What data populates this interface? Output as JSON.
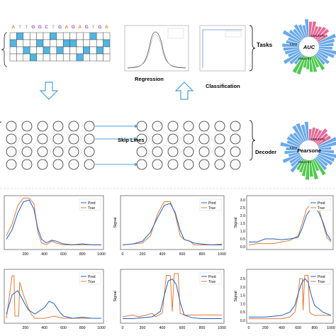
{
  "colors": {
    "seq_A": "#e6832a",
    "seq_T": "#b4b4b4",
    "seq_G": "#9c4bd0",
    "seq_C": "#c54fb0",
    "cell_fill": "#4fb6e3",
    "arrow_blue": "#4aa3d8",
    "pred": "#1f5fbf",
    "true": "#e07b39",
    "radial_blue": "#5aa0e6",
    "radial_pink": "#e25a8a",
    "radial_green": "#3ec43e"
  },
  "sequence": {
    "bases": [
      "A",
      "T",
      "T",
      "G",
      "G",
      "C",
      "T",
      "G",
      "A",
      "G",
      "A",
      "G",
      "T",
      "G",
      "A"
    ],
    "grid": [
      [
        0,
        1,
        0,
        0,
        0,
        0,
        1,
        0,
        0,
        0,
        0,
        0,
        1,
        0,
        0
      ],
      [
        1,
        0,
        0,
        0,
        1,
        0,
        0,
        0,
        1,
        1,
        0,
        0,
        0,
        0,
        1
      ],
      [
        0,
        0,
        1,
        0,
        0,
        1,
        0,
        1,
        0,
        0,
        0,
        1,
        0,
        1,
        0
      ],
      [
        0,
        0,
        0,
        1,
        0,
        0,
        0,
        0,
        0,
        0,
        1,
        0,
        0,
        0,
        0
      ]
    ]
  },
  "top_panels": {
    "regression_label": "Regression",
    "classification_label": "Classification",
    "tasks_label": "Tasks",
    "decoder_label": "Decoder",
    "skip_lines_label": "Skip Lines"
  },
  "radial_top": {
    "metric": "AUC",
    "cells": [
      "GM12878",
      "K562",
      "HeLa-S3"
    ]
  },
  "radial_bottom": {
    "metric": "Pearsone",
    "cells": [
      "GM12878",
      "K562",
      "HeLa-S3"
    ]
  },
  "signal_plots": {
    "ylabel": "Signal",
    "legend": [
      "Pred",
      "True"
    ],
    "panels": [
      {
        "xticks": [
          "200",
          "400",
          "600",
          "800",
          "1000"
        ],
        "yticks": [],
        "xmax": 1000,
        "ymax": 2.5,
        "true": [
          [
            0,
            0.6
          ],
          [
            60,
            1.2
          ],
          [
            120,
            2.2
          ],
          [
            180,
            2.6
          ],
          [
            240,
            2.6
          ],
          [
            290,
            2.3
          ],
          [
            330,
            0.8
          ],
          [
            370,
            0.2
          ],
          [
            420,
            0.1
          ],
          [
            480,
            0.3
          ],
          [
            520,
            0.2
          ],
          [
            600,
            0.1
          ],
          [
            700,
            0.1
          ],
          [
            800,
            0.1
          ],
          [
            900,
            0.1
          ],
          [
            1000,
            0.1
          ]
        ],
        "pred": [
          [
            0,
            0.4
          ],
          [
            60,
            0.9
          ],
          [
            120,
            1.8
          ],
          [
            180,
            2.4
          ],
          [
            240,
            2.5
          ],
          [
            290,
            2.0
          ],
          [
            330,
            1.0
          ],
          [
            370,
            0.4
          ],
          [
            420,
            0.2
          ],
          [
            480,
            0.35
          ],
          [
            520,
            0.3
          ],
          [
            600,
            0.15
          ],
          [
            700,
            0.1
          ],
          [
            800,
            0.15
          ],
          [
            900,
            0.1
          ],
          [
            1000,
            0.1
          ]
        ]
      },
      {
        "xticks": [
          "0",
          "200",
          "400",
          "600",
          "800",
          "1000"
        ],
        "yticks": [],
        "xmax": 1000,
        "ymax": 2.6,
        "true": [
          [
            0,
            0.1
          ],
          [
            100,
            0.15
          ],
          [
            200,
            0.2
          ],
          [
            280,
            0.6
          ],
          [
            350,
            1.8
          ],
          [
            420,
            2.5
          ],
          [
            480,
            2.5
          ],
          [
            530,
            1.8
          ],
          [
            580,
            0.6
          ],
          [
            620,
            0.4
          ],
          [
            680,
            0.3
          ],
          [
            720,
            0.1
          ],
          [
            800,
            0.1
          ],
          [
            900,
            0.1
          ],
          [
            1000,
            0.15
          ]
        ],
        "pred": [
          [
            0,
            0.1
          ],
          [
            100,
            0.15
          ],
          [
            200,
            0.3
          ],
          [
            280,
            0.8
          ],
          [
            350,
            1.6
          ],
          [
            420,
            2.3
          ],
          [
            480,
            2.4
          ],
          [
            530,
            1.9
          ],
          [
            580,
            0.9
          ],
          [
            620,
            0.4
          ],
          [
            680,
            0.3
          ],
          [
            720,
            0.2
          ],
          [
            800,
            0.15
          ],
          [
            900,
            0.1
          ],
          [
            1000,
            0.1
          ]
        ]
      },
      {
        "xticks": [],
        "yticks": [
          "0.0",
          "0.5",
          "1.0",
          "1.5",
          "2.0",
          "2.5",
          "3.0"
        ],
        "xmax": 1000,
        "ymax": 3.0,
        "true": [
          [
            0,
            0.1
          ],
          [
            100,
            0.2
          ],
          [
            200,
            0.2
          ],
          [
            300,
            0.2
          ],
          [
            400,
            0.3
          ],
          [
            500,
            0.4
          ],
          [
            600,
            0.7
          ],
          [
            650,
            1.5
          ],
          [
            700,
            2.4
          ],
          [
            750,
            2.7
          ],
          [
            800,
            2.8
          ],
          [
            850,
            2.5
          ],
          [
            900,
            1.5
          ],
          [
            950,
            0.6
          ],
          [
            1000,
            0.3
          ]
        ],
        "pred": [
          [
            0,
            0.3
          ],
          [
            100,
            0.3
          ],
          [
            200,
            0.5
          ],
          [
            300,
            0.5
          ],
          [
            400,
            0.45
          ],
          [
            500,
            0.5
          ],
          [
            600,
            0.6
          ],
          [
            650,
            1.2
          ],
          [
            700,
            2.0
          ],
          [
            750,
            2.4
          ],
          [
            800,
            2.5
          ],
          [
            850,
            2.2
          ],
          [
            900,
            1.6
          ],
          [
            950,
            0.8
          ],
          [
            1000,
            0.4
          ]
        ]
      },
      {
        "xticks": [
          "200",
          "400",
          "600",
          "800",
          "1000"
        ],
        "yticks": [],
        "xmax": 1000,
        "ymax": 2.2,
        "true": [
          [
            0,
            0.1
          ],
          [
            60,
            2.1
          ],
          [
            80,
            2.1
          ],
          [
            90,
            0.2
          ],
          [
            130,
            0.2
          ],
          [
            140,
            1.8
          ],
          [
            180,
            1.2
          ],
          [
            230,
            0.6
          ],
          [
            260,
            0.3
          ],
          [
            300,
            0.1
          ],
          [
            400,
            0.1
          ],
          [
            500,
            0.2
          ],
          [
            600,
            0.1
          ],
          [
            700,
            0.1
          ],
          [
            800,
            0.1
          ],
          [
            900,
            0.1
          ],
          [
            1000,
            0.1
          ]
        ],
        "pred": [
          [
            0,
            0.3
          ],
          [
            60,
            1.2
          ],
          [
            120,
            1.4
          ],
          [
            180,
            0.9
          ],
          [
            230,
            0.5
          ],
          [
            300,
            0.3
          ],
          [
            400,
            0.6
          ],
          [
            450,
            0.9
          ],
          [
            500,
            0.8
          ],
          [
            560,
            0.4
          ],
          [
            600,
            0.2
          ],
          [
            700,
            0.1
          ],
          [
            800,
            0.15
          ],
          [
            900,
            0.1
          ],
          [
            1000,
            0.1
          ]
        ]
      },
      {
        "xticks": [
          "0",
          "200",
          "400",
          "600",
          "800",
          "1000"
        ],
        "yticks": [],
        "xmax": 1000,
        "ymax": 2.6,
        "true": [
          [
            0,
            0.2
          ],
          [
            100,
            0.3
          ],
          [
            160,
            0.2
          ],
          [
            240,
            0.3
          ],
          [
            300,
            0.4
          ],
          [
            330,
            0.2
          ],
          [
            400,
            0.4
          ],
          [
            440,
            2.5
          ],
          [
            480,
            2.5
          ],
          [
            500,
            0.5
          ],
          [
            520,
            2.6
          ],
          [
            560,
            2.6
          ],
          [
            580,
            0.4
          ],
          [
            620,
            0.3
          ],
          [
            700,
            0.3
          ],
          [
            800,
            0.3
          ],
          [
            900,
            0.3
          ],
          [
            1000,
            0.3
          ]
        ],
        "pred": [
          [
            0,
            0.1
          ],
          [
            100,
            0.1
          ],
          [
            200,
            0.15
          ],
          [
            300,
            0.2
          ],
          [
            380,
            0.5
          ],
          [
            420,
            1.4
          ],
          [
            460,
            2.2
          ],
          [
            500,
            2.3
          ],
          [
            540,
            2.0
          ],
          [
            580,
            1.0
          ],
          [
            620,
            0.3
          ],
          [
            700,
            0.15
          ],
          [
            800,
            0.1
          ],
          [
            900,
            0.1
          ],
          [
            1000,
            0.1
          ]
        ]
      },
      {
        "xticks": [
          "0",
          "200",
          "400",
          "600",
          "800",
          "1000"
        ],
        "yticks": [
          "0.0",
          "0.5",
          "1.0",
          "1.5",
          "2.0",
          "2.5"
        ],
        "xmax": 1000,
        "ymax": 2.8,
        "true": [
          [
            0,
            0.1
          ],
          [
            200,
            0.1
          ],
          [
            400,
            0.1
          ],
          [
            500,
            0.2
          ],
          [
            560,
            0.5
          ],
          [
            600,
            1.5
          ],
          [
            620,
            2.5
          ],
          [
            650,
            2.5
          ],
          [
            660,
            0.6
          ],
          [
            680,
            2.7
          ],
          [
            720,
            2.7
          ],
          [
            740,
            0.5
          ],
          [
            760,
            0.4
          ],
          [
            800,
            0.3
          ],
          [
            900,
            0.3
          ],
          [
            1000,
            0.3
          ]
        ],
        "pred": [
          [
            0,
            0.2
          ],
          [
            200,
            0.2
          ],
          [
            400,
            0.3
          ],
          [
            500,
            0.5
          ],
          [
            560,
            0.9
          ],
          [
            600,
            1.6
          ],
          [
            640,
            2.2
          ],
          [
            680,
            2.5
          ],
          [
            720,
            2.3
          ],
          [
            760,
            1.5
          ],
          [
            800,
            0.9
          ],
          [
            900,
            0.5
          ],
          [
            1000,
            0.3
          ]
        ]
      }
    ]
  }
}
